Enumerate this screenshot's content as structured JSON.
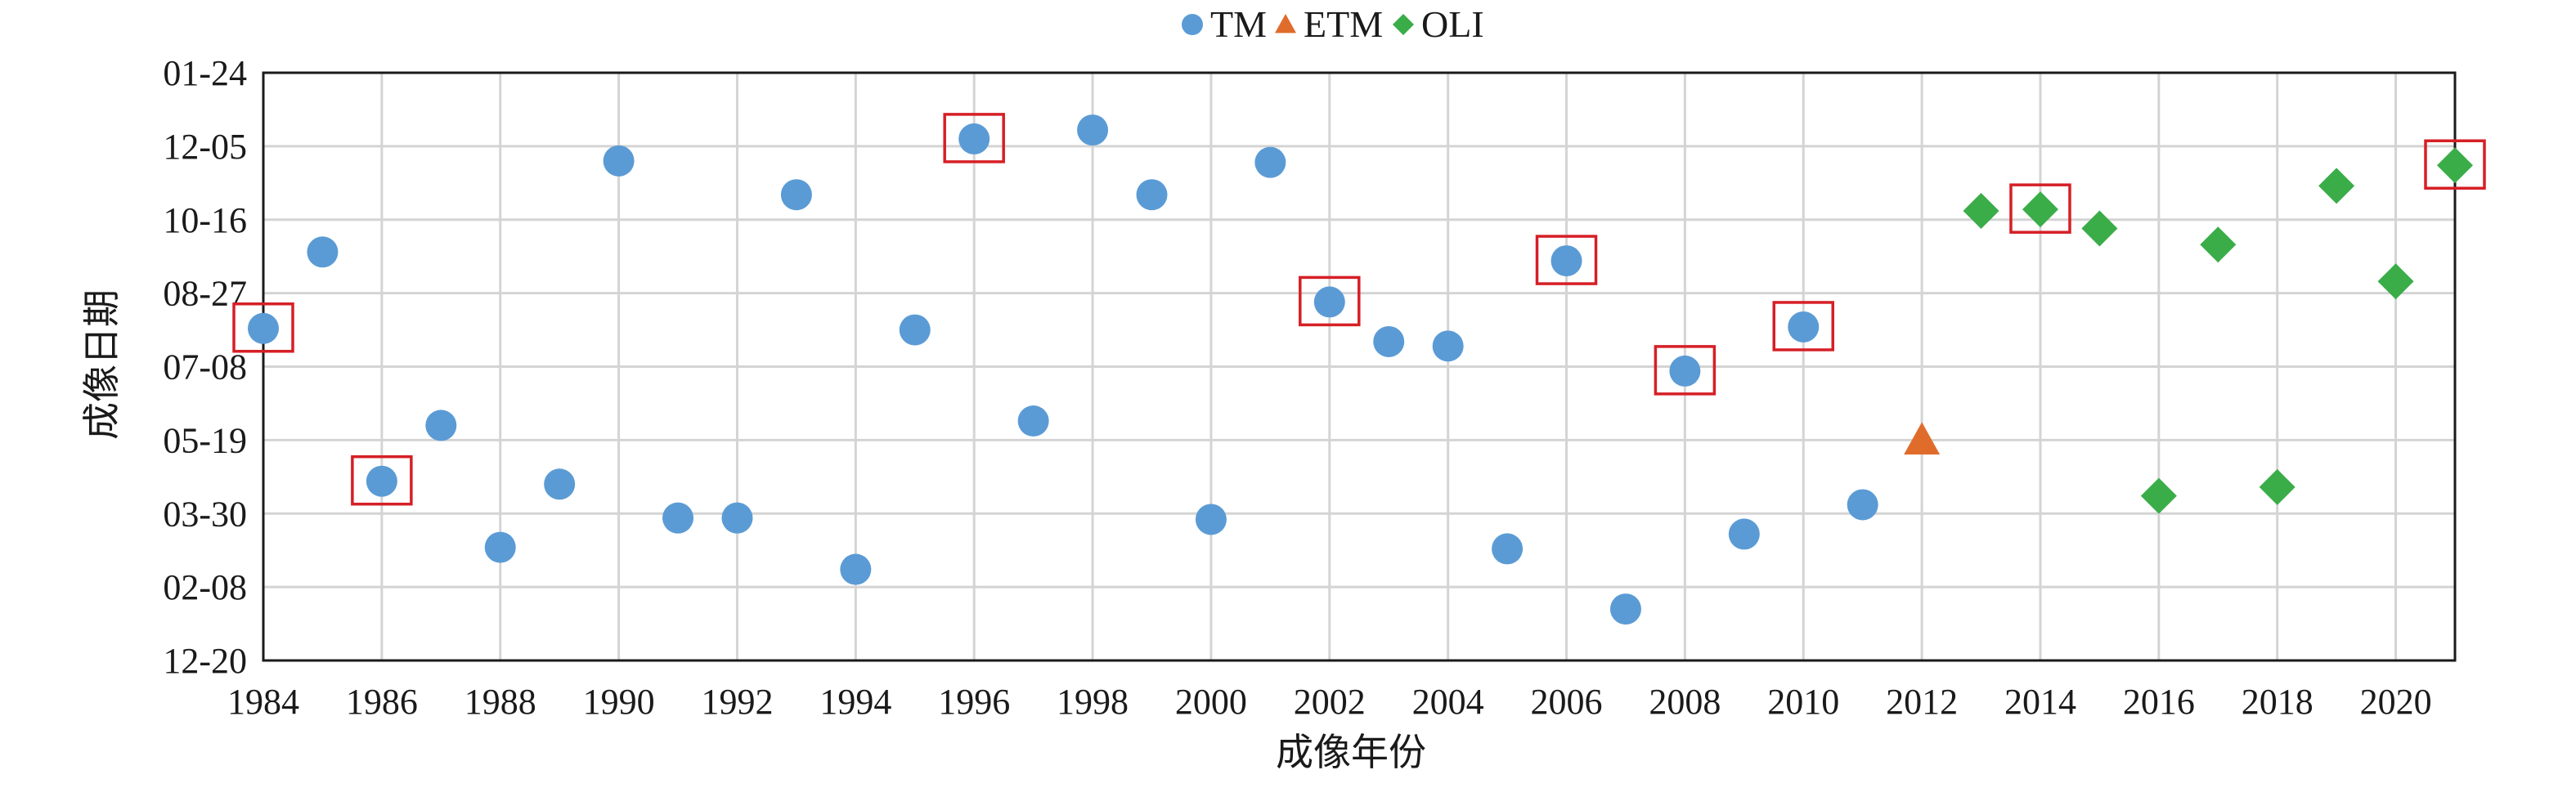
{
  "chart_data": {
    "type": "scatter",
    "xlabel": "成像年份",
    "ylabel": "成像日期",
    "xlim": [
      1984,
      2021
    ],
    "x_ticks": [
      "1984",
      "1986",
      "1988",
      "1990",
      "1992",
      "1994",
      "1996",
      "1998",
      "2000",
      "2002",
      "2004",
      "2006",
      "2008",
      "2010",
      "2012",
      "2014",
      "2016",
      "2018",
      "2020"
    ],
    "y_ticks": [
      "12-20",
      "02-08",
      "03-30",
      "05-19",
      "07-08",
      "08-27",
      "10-16",
      "12-05",
      "01-24"
    ],
    "y_axis_note": "date of year; ticks every 50 days from Dec 20 to Jan 24",
    "ylim": [
      "12-20",
      "01-24"
    ],
    "grid": true,
    "legend_position": "top-center",
    "series": [
      {
        "name": "TM",
        "marker": "circle",
        "color": "#5b9bd5",
        "points": [
          {
            "x": 1984,
            "y": "08-03"
          },
          {
            "x": 1985,
            "y": "09-24"
          },
          {
            "x": 1986,
            "y": "04-21"
          },
          {
            "x": 1987,
            "y": "05-29"
          },
          {
            "x": 1988,
            "y": "03-07"
          },
          {
            "x": 1989,
            "y": "04-19"
          },
          {
            "x": 1990,
            "y": "11-25"
          },
          {
            "x": 1991,
            "y": "03-27"
          },
          {
            "x": 1992,
            "y": "03-27"
          },
          {
            "x": 1993,
            "y": "11-02"
          },
          {
            "x": 1994,
            "y": "02-20"
          },
          {
            "x": 1995,
            "y": "08-02"
          },
          {
            "x": 1996,
            "y": "12-10"
          },
          {
            "x": 1997,
            "y": "06-01"
          },
          {
            "x": 1998,
            "y": "12-16"
          },
          {
            "x": 1999,
            "y": "11-02"
          },
          {
            "x": 2000,
            "y": "03-26"
          },
          {
            "x": 2001,
            "y": "11-24"
          },
          {
            "x": 2002,
            "y": "08-21"
          },
          {
            "x": 2003,
            "y": "07-25"
          },
          {
            "x": 2004,
            "y": "07-22"
          },
          {
            "x": 2005,
            "y": "03-06"
          },
          {
            "x": 2006,
            "y": "09-18"
          },
          {
            "x": 2007,
            "y": "01-24"
          },
          {
            "x": 2008,
            "y": "07-05"
          },
          {
            "x": 2009,
            "y": "03-16"
          },
          {
            "x": 2010,
            "y": "08-04"
          },
          {
            "x": 2011,
            "y": "04-05"
          }
        ]
      },
      {
        "name": "ETM",
        "marker": "triangle",
        "color": "#e06c2c",
        "points": [
          {
            "x": 2012,
            "y": "05-19"
          }
        ]
      },
      {
        "name": "OLI",
        "marker": "diamond",
        "color": "#3aad49",
        "points": [
          {
            "x": 2013,
            "y": "10-22"
          },
          {
            "x": 2014,
            "y": "10-23"
          },
          {
            "x": 2015,
            "y": "10-10"
          },
          {
            "x": 2016,
            "y": "04-11"
          },
          {
            "x": 2017,
            "y": "09-29"
          },
          {
            "x": 2018,
            "y": "04-17"
          },
          {
            "x": 2019,
            "y": "11-08"
          },
          {
            "x": 2020,
            "y": "09-04"
          },
          {
            "x": 2021,
            "y": "11-22"
          }
        ]
      }
    ],
    "highlighted": [
      {
        "x": 1984,
        "y": "08-03"
      },
      {
        "x": 1986,
        "y": "04-21"
      },
      {
        "x": 1996,
        "y": "12-10"
      },
      {
        "x": 2002,
        "y": "08-21"
      },
      {
        "x": 2006,
        "y": "09-18"
      },
      {
        "x": 2008,
        "y": "07-05"
      },
      {
        "x": 2010,
        "y": "08-04"
      },
      {
        "x": 2014,
        "y": "10-23"
      },
      {
        "x": 2021,
        "y": "11-22"
      }
    ],
    "highlight_color": "#d61f26"
  }
}
